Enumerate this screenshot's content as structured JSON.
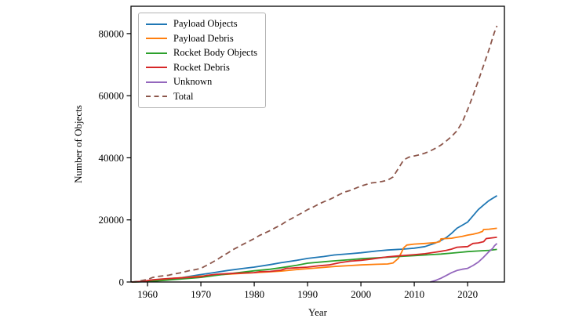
{
  "figure": {
    "background": "#ffffff",
    "spine_color": "#000000",
    "text_color": "#000000"
  },
  "chart_data": {
    "type": "line",
    "title": "",
    "xlabel": "Year",
    "ylabel": "Number of Objects",
    "xlim": [
      1956.9,
      2026.9
    ],
    "ylim": [
      0,
      88800
    ],
    "x_ticks": [
      1960,
      1970,
      1980,
      1990,
      2000,
      2010,
      2020
    ],
    "y_ticks": [
      0,
      20000,
      40000,
      60000,
      80000
    ],
    "grid": false,
    "legend_position": "upper-left",
    "series": [
      {
        "name": "Payload Objects",
        "color": "#1f77b4",
        "style": "solid",
        "points": [
          [
            1957,
            0
          ],
          [
            1959,
            100
          ],
          [
            1961,
            300
          ],
          [
            1963,
            600
          ],
          [
            1965,
            1000
          ],
          [
            1967,
            1600
          ],
          [
            1970,
            2400
          ],
          [
            1972,
            2900
          ],
          [
            1975,
            3700
          ],
          [
            1978,
            4400
          ],
          [
            1980,
            4800
          ],
          [
            1983,
            5600
          ],
          [
            1985,
            6200
          ],
          [
            1988,
            7000
          ],
          [
            1990,
            7600
          ],
          [
            1993,
            8200
          ],
          [
            1995,
            8700
          ],
          [
            1998,
            9100
          ],
          [
            2000,
            9400
          ],
          [
            2003,
            10000
          ],
          [
            2005,
            10300
          ],
          [
            2008,
            10600
          ],
          [
            2010,
            10900
          ],
          [
            2012,
            11400
          ],
          [
            2014,
            12600
          ],
          [
            2015,
            13400
          ],
          [
            2016,
            14300
          ],
          [
            2017,
            15700
          ],
          [
            2018,
            17300
          ],
          [
            2019,
            18300
          ],
          [
            2020,
            19300
          ],
          [
            2021,
            21300
          ],
          [
            2022,
            23300
          ],
          [
            2023,
            24800
          ],
          [
            2024,
            26200
          ],
          [
            2025.5,
            27800
          ]
        ]
      },
      {
        "name": "Payload Debris",
        "color": "#ff7f0e",
        "style": "solid",
        "points": [
          [
            1957,
            0
          ],
          [
            1960,
            200
          ],
          [
            1962,
            700
          ],
          [
            1965,
            1200
          ],
          [
            1967,
            1500
          ],
          [
            1970,
            1900
          ],
          [
            1973,
            2300
          ],
          [
            1975,
            2500
          ],
          [
            1978,
            2800
          ],
          [
            1980,
            3000
          ],
          [
            1982,
            3200
          ],
          [
            1985,
            3500
          ],
          [
            1988,
            4000
          ],
          [
            1990,
            4300
          ],
          [
            1993,
            4700
          ],
          [
            1995,
            5000
          ],
          [
            1998,
            5300
          ],
          [
            2000,
            5500
          ],
          [
            2003,
            5700
          ],
          [
            2005,
            5800
          ],
          [
            2006,
            6100
          ],
          [
            2007,
            7600
          ],
          [
            2007.6,
            9500
          ],
          [
            2008,
            11000
          ],
          [
            2008.6,
            11900
          ],
          [
            2010,
            12200
          ],
          [
            2012,
            12400
          ],
          [
            2014,
            12700
          ],
          [
            2014.8,
            13000
          ],
          [
            2015,
            13900
          ],
          [
            2017,
            14100
          ],
          [
            2018,
            14400
          ],
          [
            2019,
            14700
          ],
          [
            2020,
            15100
          ],
          [
            2021,
            15400
          ],
          [
            2022,
            15800
          ],
          [
            2022.8,
            16300
          ],
          [
            2023,
            16900
          ],
          [
            2024,
            17000
          ],
          [
            2025.5,
            17300
          ]
        ]
      },
      {
        "name": "Rocket Body Objects",
        "color": "#2ca02c",
        "style": "solid",
        "points": [
          [
            1957,
            0
          ],
          [
            1960,
            150
          ],
          [
            1963,
            500
          ],
          [
            1965,
            800
          ],
          [
            1968,
            1200
          ],
          [
            1970,
            1500
          ],
          [
            1973,
            2200
          ],
          [
            1975,
            2600
          ],
          [
            1978,
            3200
          ],
          [
            1980,
            3600
          ],
          [
            1983,
            4100
          ],
          [
            1985,
            4600
          ],
          [
            1988,
            5400
          ],
          [
            1990,
            6050
          ],
          [
            1993,
            6500
          ],
          [
            1995,
            6800
          ],
          [
            1998,
            7200
          ],
          [
            2000,
            7500
          ],
          [
            2003,
            7800
          ],
          [
            2005,
            8000
          ],
          [
            2008,
            8300
          ],
          [
            2010,
            8500
          ],
          [
            2013,
            8800
          ],
          [
            2015,
            9000
          ],
          [
            2017,
            9300
          ],
          [
            2019,
            9600
          ],
          [
            2020,
            9800
          ],
          [
            2022,
            10000
          ],
          [
            2024,
            10200
          ],
          [
            2025.5,
            10500
          ]
        ]
      },
      {
        "name": "Rocket Debris",
        "color": "#d62728",
        "style": "solid",
        "points": [
          [
            1957,
            0
          ],
          [
            1959,
            200
          ],
          [
            1961,
            700
          ],
          [
            1963,
            1000
          ],
          [
            1965,
            1200
          ],
          [
            1968,
            1500
          ],
          [
            1970,
            1700
          ],
          [
            1971,
            2100
          ],
          [
            1973,
            2500
          ],
          [
            1975,
            2700
          ],
          [
            1978,
            2900
          ],
          [
            1980,
            3000
          ],
          [
            1981,
            3300
          ],
          [
            1983,
            3400
          ],
          [
            1985,
            3800
          ],
          [
            1986,
            4400
          ],
          [
            1988,
            4600
          ],
          [
            1990,
            4800
          ],
          [
            1992,
            5200
          ],
          [
            1994,
            5500
          ],
          [
            1996,
            6200
          ],
          [
            1998,
            6700
          ],
          [
            2000,
            7000
          ],
          [
            2002,
            7400
          ],
          [
            2005,
            8100
          ],
          [
            2007,
            8400
          ],
          [
            2010,
            8800
          ],
          [
            2012,
            9100
          ],
          [
            2014,
            9600
          ],
          [
            2015,
            9900
          ],
          [
            2016,
            10200
          ],
          [
            2017,
            10600
          ],
          [
            2018,
            11200
          ],
          [
            2019,
            11300
          ],
          [
            2020,
            11400
          ],
          [
            2021,
            12400
          ],
          [
            2022,
            12600
          ],
          [
            2023,
            13000
          ],
          [
            2023.5,
            14000
          ],
          [
            2024,
            14100
          ],
          [
            2025.5,
            14400
          ]
        ]
      },
      {
        "name": "Unknown",
        "color": "#9467bd",
        "style": "solid",
        "points": [
          [
            2013,
            0
          ],
          [
            2014,
            500
          ],
          [
            2015,
            1200
          ],
          [
            2016,
            2100
          ],
          [
            2017,
            3000
          ],
          [
            2018,
            3700
          ],
          [
            2019,
            4100
          ],
          [
            2020,
            4400
          ],
          [
            2021,
            5300
          ],
          [
            2022,
            6400
          ],
          [
            2023,
            8000
          ],
          [
            2024,
            9800
          ],
          [
            2024.7,
            10800
          ],
          [
            2025,
            11600
          ],
          [
            2025.5,
            12400
          ]
        ]
      },
      {
        "name": "Total",
        "color": "#8c564b",
        "style": "dashed",
        "points": [
          [
            1957,
            0
          ],
          [
            1958,
            150
          ],
          [
            1959,
            500
          ],
          [
            1960,
            800
          ],
          [
            1961,
            1500
          ],
          [
            1962,
            1800
          ],
          [
            1963,
            2000
          ],
          [
            1964,
            2200
          ],
          [
            1965,
            2600
          ],
          [
            1966,
            2900
          ],
          [
            1967,
            3300
          ],
          [
            1968,
            3700
          ],
          [
            1969,
            4000
          ],
          [
            1970,
            4400
          ],
          [
            1971,
            5300
          ],
          [
            1972,
            6200
          ],
          [
            1973,
            7200
          ],
          [
            1974,
            8300
          ],
          [
            1975,
            9300
          ],
          [
            1976,
            10400
          ],
          [
            1977,
            11300
          ],
          [
            1978,
            12200
          ],
          [
            1979,
            13100
          ],
          [
            1980,
            14000
          ],
          [
            1981,
            15000
          ],
          [
            1982,
            15800
          ],
          [
            1983,
            16600
          ],
          [
            1984,
            17500
          ],
          [
            1985,
            18400
          ],
          [
            1986,
            19500
          ],
          [
            1987,
            20400
          ],
          [
            1988,
            21400
          ],
          [
            1989,
            22300
          ],
          [
            1990,
            23300
          ],
          [
            1991,
            24100
          ],
          [
            1992,
            25000
          ],
          [
            1993,
            25800
          ],
          [
            1994,
            26500
          ],
          [
            1995,
            27300
          ],
          [
            1996,
            28200
          ],
          [
            1997,
            29000
          ],
          [
            1998,
            29500
          ],
          [
            1999,
            30200
          ],
          [
            2000,
            30900
          ],
          [
            2001,
            31400
          ],
          [
            2002,
            31900
          ],
          [
            2003,
            32100
          ],
          [
            2004,
            32400
          ],
          [
            2005,
            32800
          ],
          [
            2006,
            33800
          ],
          [
            2007,
            36500
          ],
          [
            2008,
            39300
          ],
          [
            2009,
            40200
          ],
          [
            2010,
            40600
          ],
          [
            2011,
            41000
          ],
          [
            2012,
            41500
          ],
          [
            2013,
            42200
          ],
          [
            2014,
            43100
          ],
          [
            2015,
            44100
          ],
          [
            2016,
            45400
          ],
          [
            2017,
            46900
          ],
          [
            2018,
            48700
          ],
          [
            2019,
            51500
          ],
          [
            2020,
            55500
          ],
          [
            2021,
            60000
          ],
          [
            2022,
            64800
          ],
          [
            2023,
            69800
          ],
          [
            2024,
            74800
          ],
          [
            2025,
            80300
          ],
          [
            2025.5,
            82500
          ]
        ]
      }
    ]
  }
}
